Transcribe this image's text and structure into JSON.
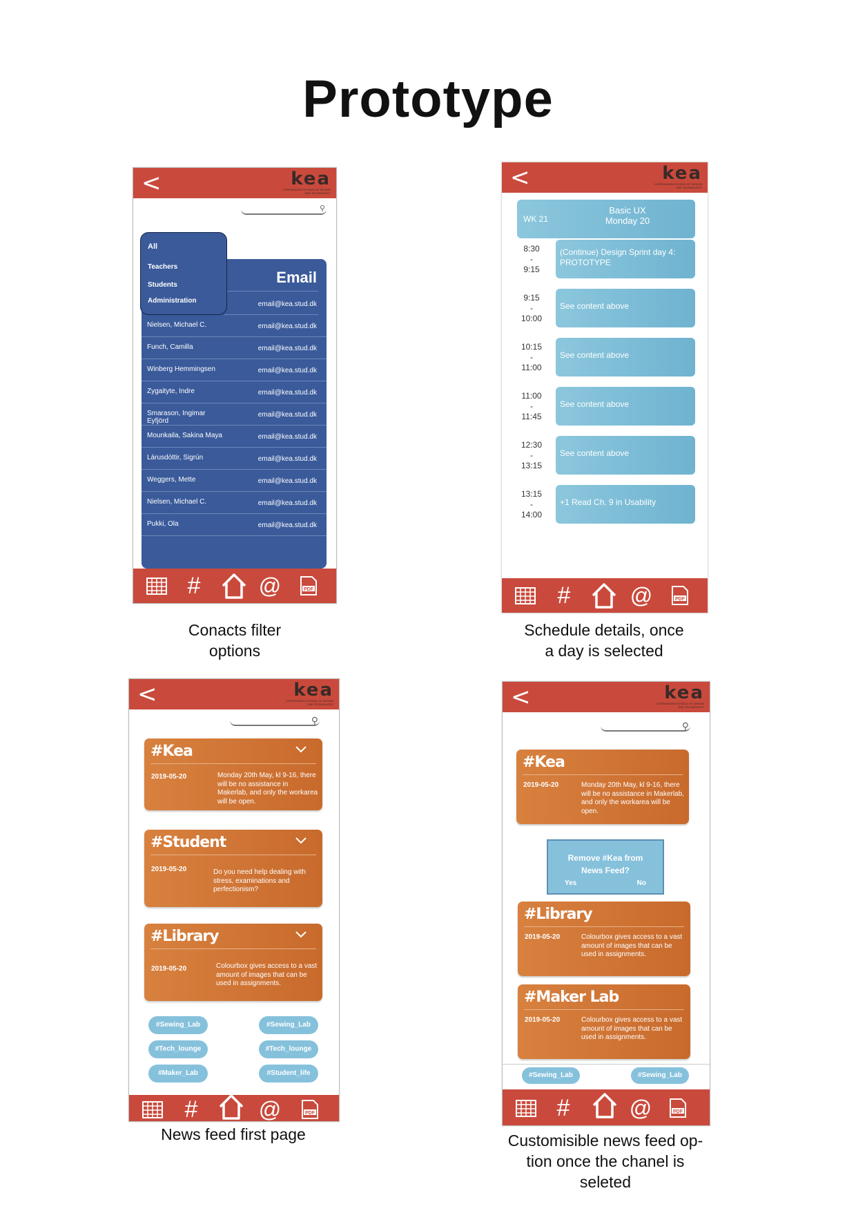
{
  "page": {
    "title": "Prototype"
  },
  "brand": {
    "logo_word": "kea",
    "logo_sub": "Copenhagen School of Design and Technology"
  },
  "nav": {
    "back": "<",
    "hash": "#",
    "at": "@",
    "pdf": "PDF"
  },
  "contacts": {
    "caption": [
      "Conacts filter",
      "options"
    ],
    "header": "Email",
    "filters": [
      "All",
      "Teachers",
      "Students",
      "Administration"
    ],
    "filter_email": "email@kea.stud.dk",
    "rows": [
      {
        "name": "Nielsen, Michael C.",
        "email": "email@kea.stud.dk"
      },
      {
        "name": "Funch, Camilla",
        "email": "email@kea.stud.dk"
      },
      {
        "name": "Winberg Hemmingsen",
        "email": "email@kea.stud.dk"
      },
      {
        "name": "Zygaityte, Indre",
        "email": "email@kea.stud.dk"
      },
      {
        "name": "Smarason, Ingimar Eyfjörd",
        "email": "email@kea.stud.dk"
      },
      {
        "name": "Mounkaila, Sakina Maya",
        "email": "email@kea.stud.dk"
      },
      {
        "name": "Lárusdóttir, Sigrún",
        "email": "email@kea.stud.dk"
      },
      {
        "name": "Weggers, Mette",
        "email": "email@kea.stud.dk"
      },
      {
        "name": "Nielsen, Michael C.",
        "email": "email@kea.stud.dk"
      },
      {
        "name": "Pukki, Ola",
        "email": "email@kea.stud.dk"
      }
    ]
  },
  "schedule": {
    "caption": [
      "Schedule details, once",
      "a day is selected"
    ],
    "week": "WK 21",
    "course": "Basic UX",
    "day": "Monday 20",
    "slots": [
      {
        "start": "8:30",
        "end": "9:15",
        "text": "(Continue) Design Sprint day 4: PROTOTYPE"
      },
      {
        "start": "9:15",
        "end": "10:00",
        "text": "See content above"
      },
      {
        "start": "10:15",
        "end": "11:00",
        "text": "See content above"
      },
      {
        "start": "11:00",
        "end": "11:45",
        "text": "See content above"
      },
      {
        "start": "12:30",
        "end": "13:15",
        "text": "See content above"
      },
      {
        "start": "13:15",
        "end": "14:00",
        "text": "+1 Read Ch. 9 in Usability"
      }
    ],
    "dash": "-"
  },
  "newsfeed": {
    "caption": "News feed first page",
    "cards": [
      {
        "title": "#Kea",
        "date": "2019-05-20",
        "text": "Monday 20th May, kl 9-16, there will be no assistance in Makerlab, and only the workarea will be open."
      },
      {
        "title": "#Student",
        "date": "2019-05-20",
        "text": "Do you need help dealing with stress, examinations and perfectionism?"
      },
      {
        "title": "#Library",
        "date": "2019-05-20",
        "text": "Colourbox gives access to a vast amount of images that can be used in assignments."
      }
    ],
    "tags": [
      "#Sewing_Lab",
      "#Sewing_Lab",
      "#Tech_lounge",
      "#Tech_lounge",
      "#Maker_Lab",
      "#Student_life"
    ]
  },
  "custom": {
    "caption": [
      "Customisible news feed op-",
      "tion once the chanel is",
      "seleted"
    ],
    "cards": [
      {
        "title": "#Kea",
        "date": "2019-05-20",
        "text": "Monday 20th May, kl 9-16, there will be no assistance in Makerlab, and only the workarea will be open."
      },
      {
        "title": "#Library",
        "date": "2019-05-20",
        "text": "Colourbox gives access to a vast amount of images that can be used in assignments."
      },
      {
        "title": "#Maker Lab",
        "date": "2019-05-20",
        "text": "Colourbox gives access to a vast amount of images that can be used in assignments."
      }
    ],
    "dialog": {
      "line1": "Remove #Kea from",
      "line2": "News Feed?",
      "yes": "Yes",
      "no": "No"
    },
    "tags": [
      "#Sewing_Lab",
      "#Sewing_Lab"
    ]
  },
  "colors": {
    "topbar": "#c94a3c",
    "blue": "#3a5a9a",
    "schedule": "#7dbdd8",
    "news": "#d07634",
    "tag": "#86c1dc"
  }
}
